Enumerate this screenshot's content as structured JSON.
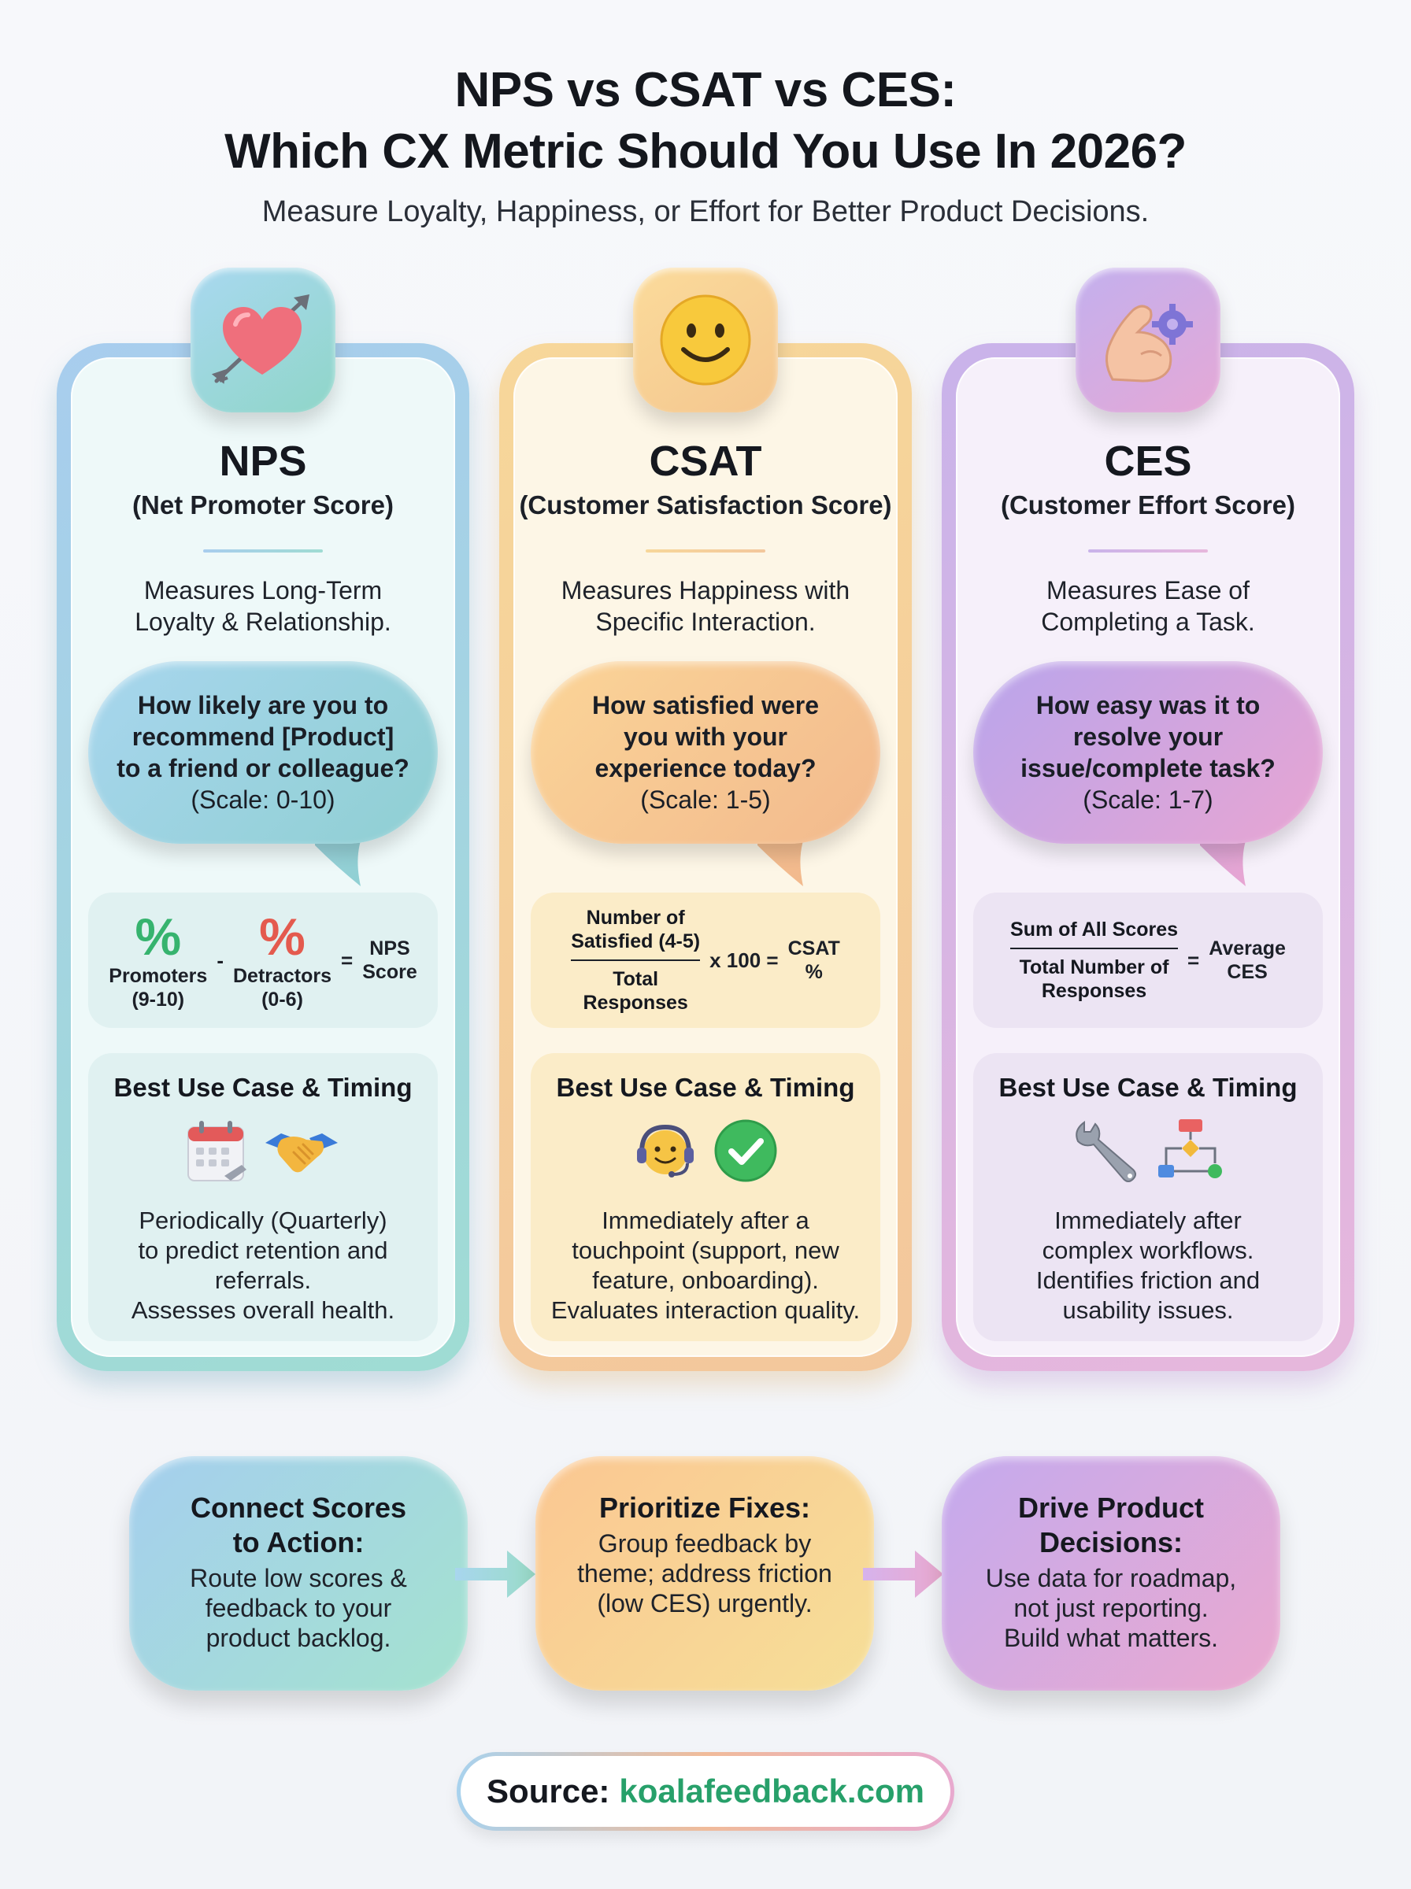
{
  "header": {
    "title_line1": "NPS vs CSAT vs CES:",
    "title_line2": "Which CX Metric Should You Use In 2026?",
    "subtitle": "Measure Loyalty, Happiness, or Effort for Better Product Decisions."
  },
  "columns": {
    "nps": {
      "icon": "heart-with-arrow-icon",
      "name": "NPS",
      "full_name": "(Net Promoter Score)",
      "desc_line1": "Measures Long-Term",
      "desc_line2": "Loyalty & Relationship.",
      "question_line1": "How likely are you to",
      "question_line2": "recommend [Product]",
      "question_line3": "to a friend or colleague?",
      "scale": "(Scale: 0-10)",
      "formula": {
        "pct_symbol": "%",
        "promoters_line1": "Promoters",
        "promoters_line2": "(9-10)",
        "minus": "-",
        "detractors_line1": "Detractors",
        "detractors_line2": "(0-6)",
        "equals": "=",
        "result_line1": "NPS",
        "result_line2": "Score"
      },
      "usecase_title": "Best Use Case & Timing",
      "usecase_icons": [
        "calendar-icon",
        "handshake-icon"
      ],
      "usecase_line1": "Periodically (Quarterly)",
      "usecase_line2": "to predict retention and",
      "usecase_line3": "referrals.",
      "usecase_line4": "Assesses overall health."
    },
    "csat": {
      "icon": "smiley-face-icon",
      "name": "CSAT",
      "full_name": "(Customer Satisfaction Score)",
      "desc_line1": "Measures Happiness with",
      "desc_line2": "Specific Interaction.",
      "question_line1": "How satisfied were",
      "question_line2": "you with your",
      "question_line3": "experience today?",
      "scale": "(Scale: 1-5)",
      "formula": {
        "num_line1": "Number of",
        "num_line2": "Satisfied (4-5)",
        "den_line1": "Total",
        "den_line2": "Responses",
        "multiplier": "x 100 =",
        "result_line1": "CSAT",
        "result_line2": "%"
      },
      "usecase_title": "Best Use Case & Timing",
      "usecase_icons": [
        "headset-agent-icon",
        "check-mark-icon"
      ],
      "usecase_line1": "Immediately after a",
      "usecase_line2": "touchpoint (support, new",
      "usecase_line3": "feature, onboarding).",
      "usecase_line4": "Evaluates interaction quality."
    },
    "ces": {
      "icon": "flexed-arm-gear-icon",
      "name": "CES",
      "full_name": "(Customer Effort Score)",
      "desc_line1": "Measures Ease of",
      "desc_line2": "Completing a Task.",
      "question_line1": "How easy was it to",
      "question_line2": "resolve your",
      "question_line3": "issue/complete task?",
      "scale": "(Scale: 1-7)",
      "formula": {
        "num_line1": "Sum of All Scores",
        "den_line1": "Total Number of",
        "den_line2": "Responses",
        "equals": "=",
        "result_line1": "Average",
        "result_line2": "CES"
      },
      "usecase_title": "Best Use Case & Timing",
      "usecase_icons": [
        "wrench-icon",
        "workflow-diagram-icon"
      ],
      "usecase_line1": "Immediately after",
      "usecase_line2": "complex workflows.",
      "usecase_line3": "Identifies friction and",
      "usecase_line4": "usability issues."
    }
  },
  "steps": [
    {
      "title_line1": "Connect Scores",
      "title_line2": "to Action:",
      "text_line1": "Route low scores &",
      "text_line2": "feedback to your",
      "text_line3": "product backlog."
    },
    {
      "title_line1": "Prioritize Fixes:",
      "text_line1": "Group feedback by",
      "text_line2": "theme; address friction",
      "text_line3": "(low CES) urgently."
    },
    {
      "title_line1": "Drive Product",
      "title_line2": "Decisions:",
      "text_line1": "Use data for roadmap,",
      "text_line2": "not just reporting.",
      "text_line3": "Build what matters."
    }
  ],
  "source": {
    "label": "Source:",
    "link": "koalafeedback.com"
  },
  "colors": {
    "nps_accent": "#9fd3dc",
    "csat_accent": "#f6cf96",
    "ces_accent": "#d4b0e4",
    "promoter_green": "#36b36e",
    "detractor_red": "#e45a4e",
    "link_green": "#27a06a"
  }
}
